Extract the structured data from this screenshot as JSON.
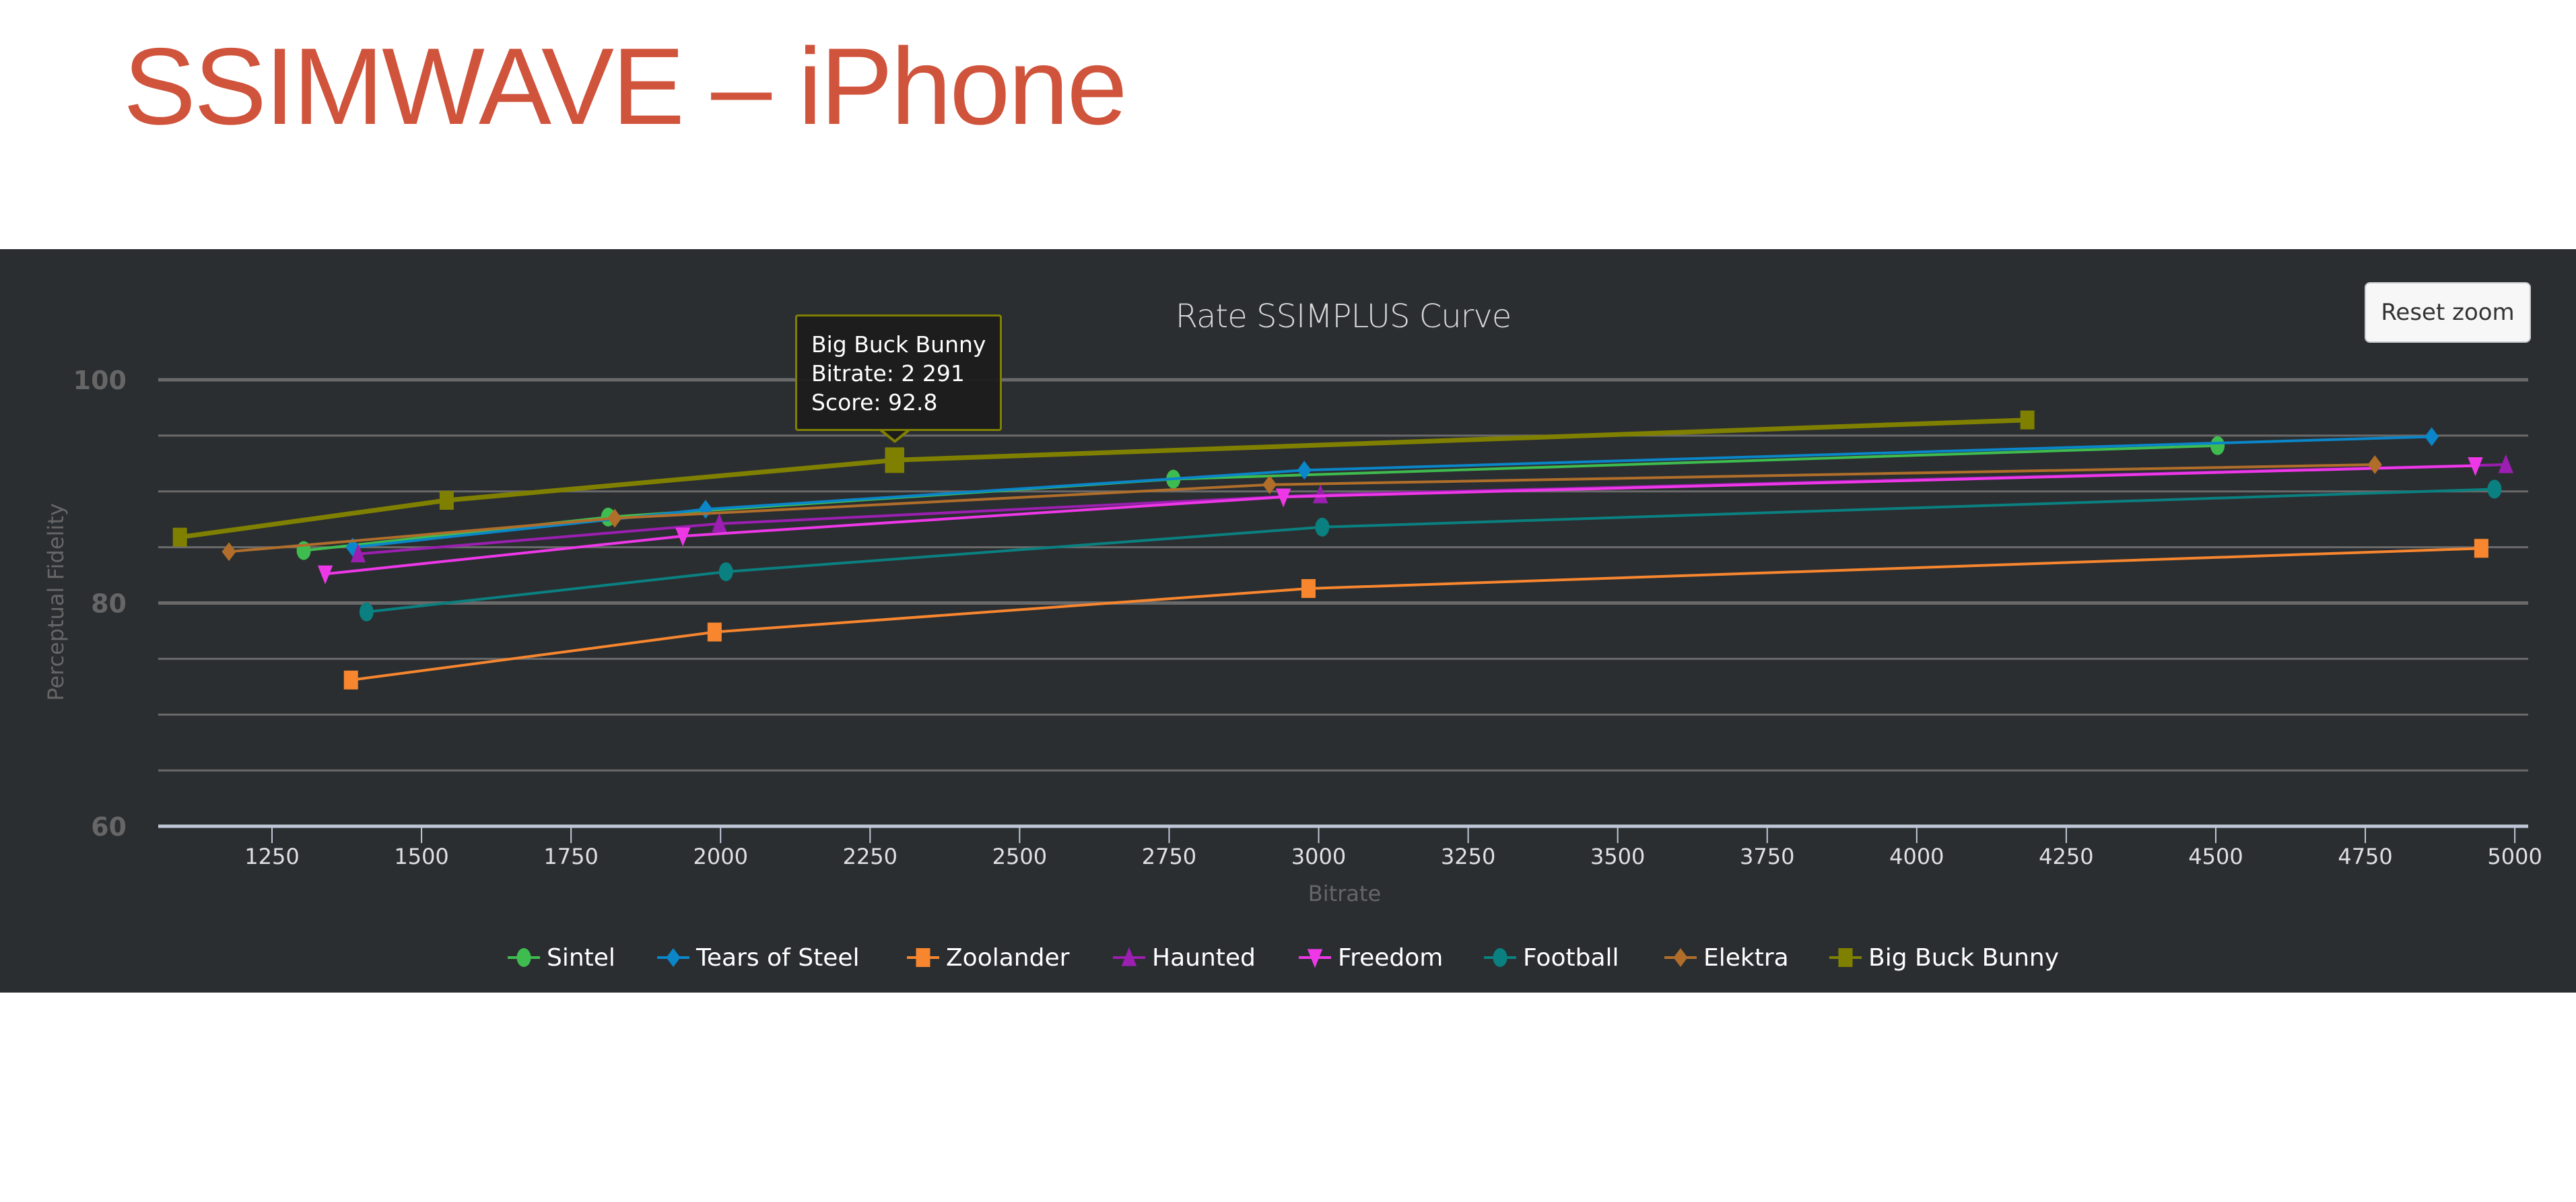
{
  "slide": {
    "title": "SSIMWAVE – iPhone"
  },
  "chart_panel": {
    "background": "#2a2e31",
    "reset_zoom_label": "Reset zoom",
    "tooltip": {
      "series": "Big Buck Bunny",
      "bitrate_line": "Bitrate: 2 291",
      "score_line": "Score: 92.8",
      "border_color": "#808000"
    }
  },
  "chart_data": {
    "type": "line",
    "title": "Rate SSIMPLUS Curve",
    "xlabel": "Bitrate",
    "ylabel": "Perceptual Fidelity",
    "xlim": [
      1060,
      5020
    ],
    "ylim": [
      60,
      100
    ],
    "x_ticks": [
      1250,
      1500,
      1750,
      2000,
      2250,
      2500,
      2750,
      3000,
      3250,
      3500,
      3750,
      4000,
      4250,
      4500,
      4750,
      5000
    ],
    "y_ticks_labeled": [
      60,
      80,
      100
    ],
    "y_gridlines": [
      60,
      65,
      70,
      75,
      80,
      85,
      90,
      95,
      100
    ],
    "grid": true,
    "legend_position": "bottom",
    "series": [
      {
        "name": "Sintel",
        "color": "#3fbc4f",
        "marker": "circle",
        "x": [
          1303,
          1812,
          2757,
          4503
        ],
        "y": [
          84.7,
          87.7,
          91.1,
          94.1
        ]
      },
      {
        "name": "Tears of Steel",
        "color": "#0a86c9",
        "marker": "diamond",
        "x": [
          1385,
          1975,
          2976,
          4861
        ],
        "y": [
          85.0,
          88.4,
          91.9,
          94.9
        ]
      },
      {
        "name": "Zoolander",
        "color": "#f7862f",
        "marker": "square",
        "x": [
          1382,
          1990,
          2983,
          4944
        ],
        "y": [
          73.1,
          77.4,
          81.3,
          84.9
        ]
      },
      {
        "name": "Haunted",
        "color": "#9b1fb0",
        "marker": "triangle",
        "x": [
          1394,
          1998,
          3003,
          4985
        ],
        "y": [
          84.4,
          87.1,
          89.7,
          92.4
        ]
      },
      {
        "name": "Freedom",
        "color": "#ee38e8",
        "marker": "triangle-down",
        "x": [
          1339,
          1937,
          2941,
          4934
        ],
        "y": [
          82.6,
          86.0,
          89.5,
          92.3
        ]
      },
      {
        "name": "Football",
        "color": "#0a8080",
        "marker": "circle",
        "x": [
          1408,
          2009,
          3006,
          4966
        ],
        "y": [
          79.2,
          82.8,
          86.8,
          90.2
        ]
      },
      {
        "name": "Elektra",
        "color": "#b06e2a",
        "marker": "diamond",
        "x": [
          1178,
          1823,
          2918,
          4766
        ],
        "y": [
          84.6,
          87.6,
          90.6,
          92.4
        ]
      },
      {
        "name": "Big Buck Bunny",
        "color": "#808000",
        "marker": "square",
        "x": [
          1096,
          1542,
          2291,
          4185
        ],
        "y": [
          85.9,
          89.2,
          92.8,
          96.4
        ]
      }
    ],
    "highlighted_point": {
      "series": "Big Buck Bunny",
      "x": 2291,
      "y": 92.8
    }
  }
}
